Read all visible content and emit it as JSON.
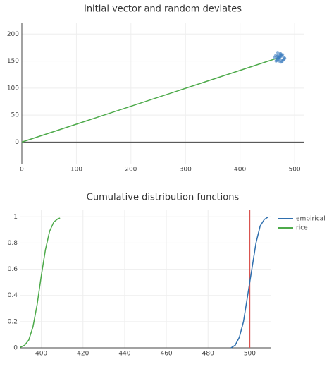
{
  "chart_data": [
    {
      "type": "scatter",
      "title": "Initial vector and random deviates",
      "xlim": [
        0,
        518
      ],
      "xticks": [
        0,
        100,
        200,
        300,
        400,
        500
      ],
      "ylim": [
        -40,
        220
      ],
      "yticks": [
        0,
        50,
        100,
        150,
        200
      ],
      "grid": true,
      "zeroline": true,
      "series": [
        {
          "mode": "lines",
          "color": "#4daa4a",
          "x": [
            0,
            473
          ],
          "values": [
            0,
            157
          ]
        },
        {
          "mode": "markers",
          "color": "#3f7fc0",
          "x": [
            468,
            475,
            479,
            471,
            466,
            474,
            481,
            470,
            477,
            463,
            472,
            476,
            469,
            480,
            473,
            467,
            478,
            471,
            475,
            465,
            470,
            477,
            474,
            468,
            482,
            472,
            476,
            469,
            473,
            471
          ],
          "values": [
            155,
            160,
            152,
            158,
            150,
            163,
            156,
            161,
            149,
            157,
            154,
            159,
            166,
            153,
            158,
            151,
            162,
            156,
            148,
            160,
            157,
            152,
            164,
            159,
            155,
            150,
            161,
            153,
            157,
            156
          ]
        }
      ]
    },
    {
      "type": "line",
      "title": "Cumulative distribution functions",
      "xlim": [
        390,
        510
      ],
      "xticks": [
        400,
        420,
        440,
        460,
        480,
        500
      ],
      "ylim": [
        0,
        1.05
      ],
      "yticks": [
        0,
        0.2,
        0.4,
        0.6,
        0.8,
        1
      ],
      "grid": true,
      "zeroline": true,
      "legend": "right",
      "reference_x": 500,
      "reference_color": "#d9534f",
      "series": [
        {
          "name": "empirical",
          "color": "#2f6fae",
          "x": [
            491,
            493,
            495,
            497,
            499,
            500,
            501,
            503,
            505,
            507,
            509
          ],
          "values": [
            0,
            0.02,
            0.08,
            0.2,
            0.4,
            0.5,
            0.6,
            0.8,
            0.93,
            0.98,
            1
          ]
        },
        {
          "name": "rice",
          "color": "#4daa4a",
          "x": [
            390,
            392,
            394,
            396,
            398,
            400,
            402,
            404,
            406,
            408,
            409
          ],
          "values": [
            0.005,
            0.02,
            0.06,
            0.16,
            0.33,
            0.55,
            0.75,
            0.89,
            0.96,
            0.985,
            0.99
          ]
        }
      ]
    }
  ]
}
